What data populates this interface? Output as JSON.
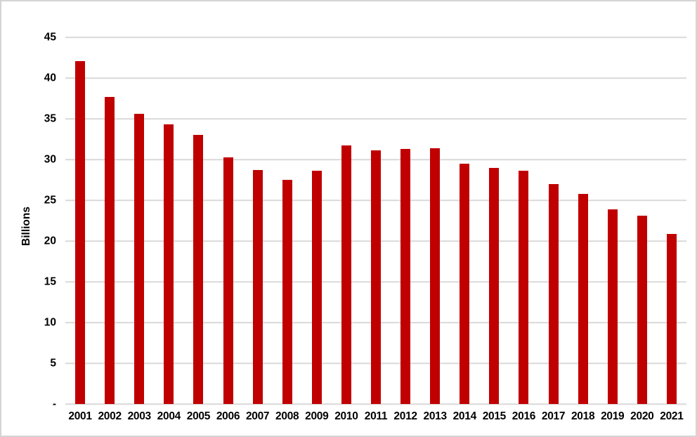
{
  "chart_data": {
    "type": "bar",
    "title": "",
    "categories": [
      "2001",
      "2002",
      "2003",
      "2004",
      "2005",
      "2006",
      "2007",
      "2008",
      "2009",
      "2010",
      "2011",
      "2012",
      "2013",
      "2014",
      "2015",
      "2016",
      "2017",
      "2018",
      "2019",
      "2020",
      "2021"
    ],
    "values": [
      42.1,
      37.7,
      35.6,
      34.3,
      33.0,
      30.3,
      28.7,
      27.5,
      28.6,
      31.7,
      31.1,
      31.3,
      31.4,
      29.5,
      29.0,
      28.6,
      27.0,
      25.8,
      23.9,
      23.1,
      20.9
    ],
    "xlabel": "",
    "ylabel": "Billions",
    "ylim": [
      0,
      45
    ],
    "ytick_interval": 5,
    "yticks": [
      {
        "value": 45,
        "label": "45"
      },
      {
        "value": 40,
        "label": "40"
      },
      {
        "value": 35,
        "label": "35"
      },
      {
        "value": 30,
        "label": "30"
      },
      {
        "value": 25,
        "label": "25"
      },
      {
        "value": 20,
        "label": "20"
      },
      {
        "value": 15,
        "label": "15"
      },
      {
        "value": 10,
        "label": "10"
      },
      {
        "value": 5,
        "label": "5"
      },
      {
        "value": 0,
        "label": "-"
      }
    ],
    "grid": "horizontal",
    "legend_position": "none",
    "bar_color": "#c00000",
    "gridline_color": "#d9d9d9",
    "axis_line_color": "#d9d9d9",
    "text_color": "#000000",
    "frame_border_color": "#d4d4d4",
    "background_color": "#ffffff"
  }
}
